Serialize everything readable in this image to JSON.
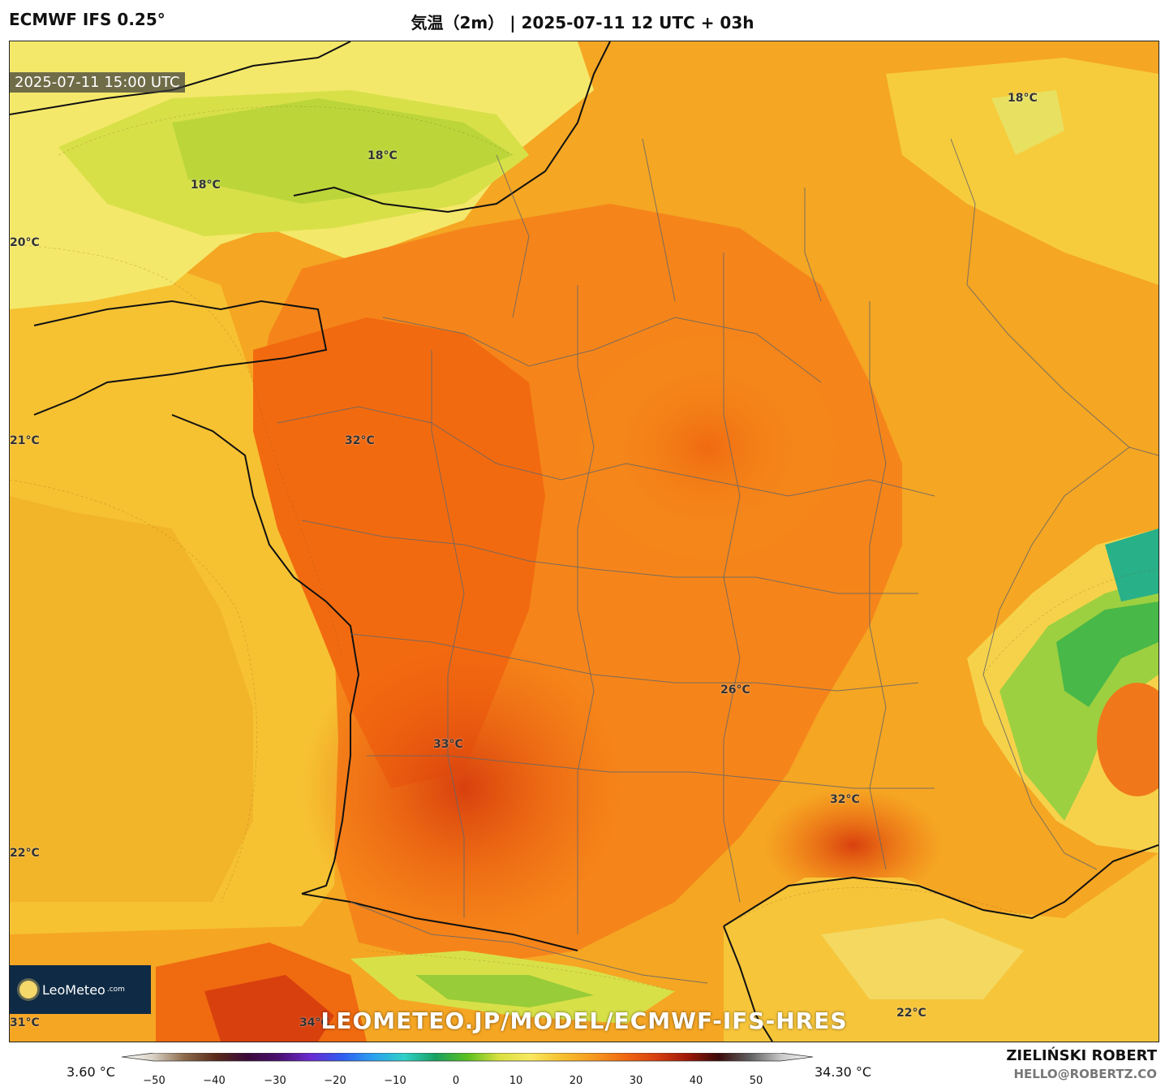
{
  "header": {
    "model": "ECMWF IFS 0.25°",
    "title": "気温（2m） | 2025-07-11 12 UTC + 03h"
  },
  "map": {
    "valid_time": "2025-07-11 15:00 UTC",
    "temperature_labels": [
      "18°C",
      "18°C",
      "18°C",
      "20°C",
      "21°C",
      "32°C",
      "33°C",
      "26°C",
      "32°C",
      "22°C",
      "22°C",
      "31°C",
      "34°C"
    ],
    "watermark": "LEOMETEO.JP/MODEL/ECMWF-IFS-HRES",
    "logo_text": "LeoMeteo",
    "logo_suffix": ".com"
  },
  "colorbar": {
    "min_label": "3.60 °C",
    "max_label": "34.30 °C",
    "ticks": [
      "−50",
      "−40",
      "−30",
      "−20",
      "−10",
      "0",
      "10",
      "20",
      "30",
      "40",
      "50"
    ],
    "colors": [
      "#ffffff",
      "#d8d0c4",
      "#8b6a4a",
      "#5a2a1a",
      "#3a0a3a",
      "#4a1070",
      "#6a2ad0",
      "#2f5cf0",
      "#2aa0f0",
      "#30d0c8",
      "#18a060",
      "#5ac020",
      "#d8e040",
      "#f8e860",
      "#f6c030",
      "#f59a20",
      "#f06a10",
      "#d84010",
      "#a01808",
      "#3a0a0a",
      "#606060",
      "#c8c8c8",
      "#ffffff"
    ]
  },
  "credits": {
    "author": "ZIELIŃSKI ROBERT",
    "email": "HELLO@ROBERTZ.CO"
  }
}
